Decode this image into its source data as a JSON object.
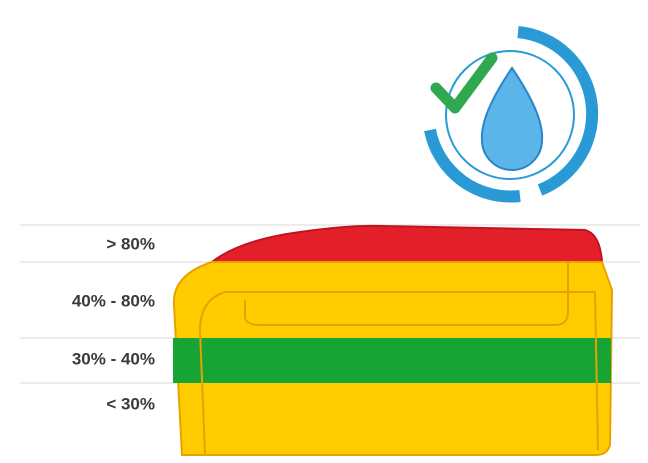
{
  "levels": {
    "items": [
      {
        "label": "> 80%"
      },
      {
        "label": "40% - 80%"
      },
      {
        "label": "30% - 40%"
      },
      {
        "label": "< 30%"
      }
    ]
  }
}
